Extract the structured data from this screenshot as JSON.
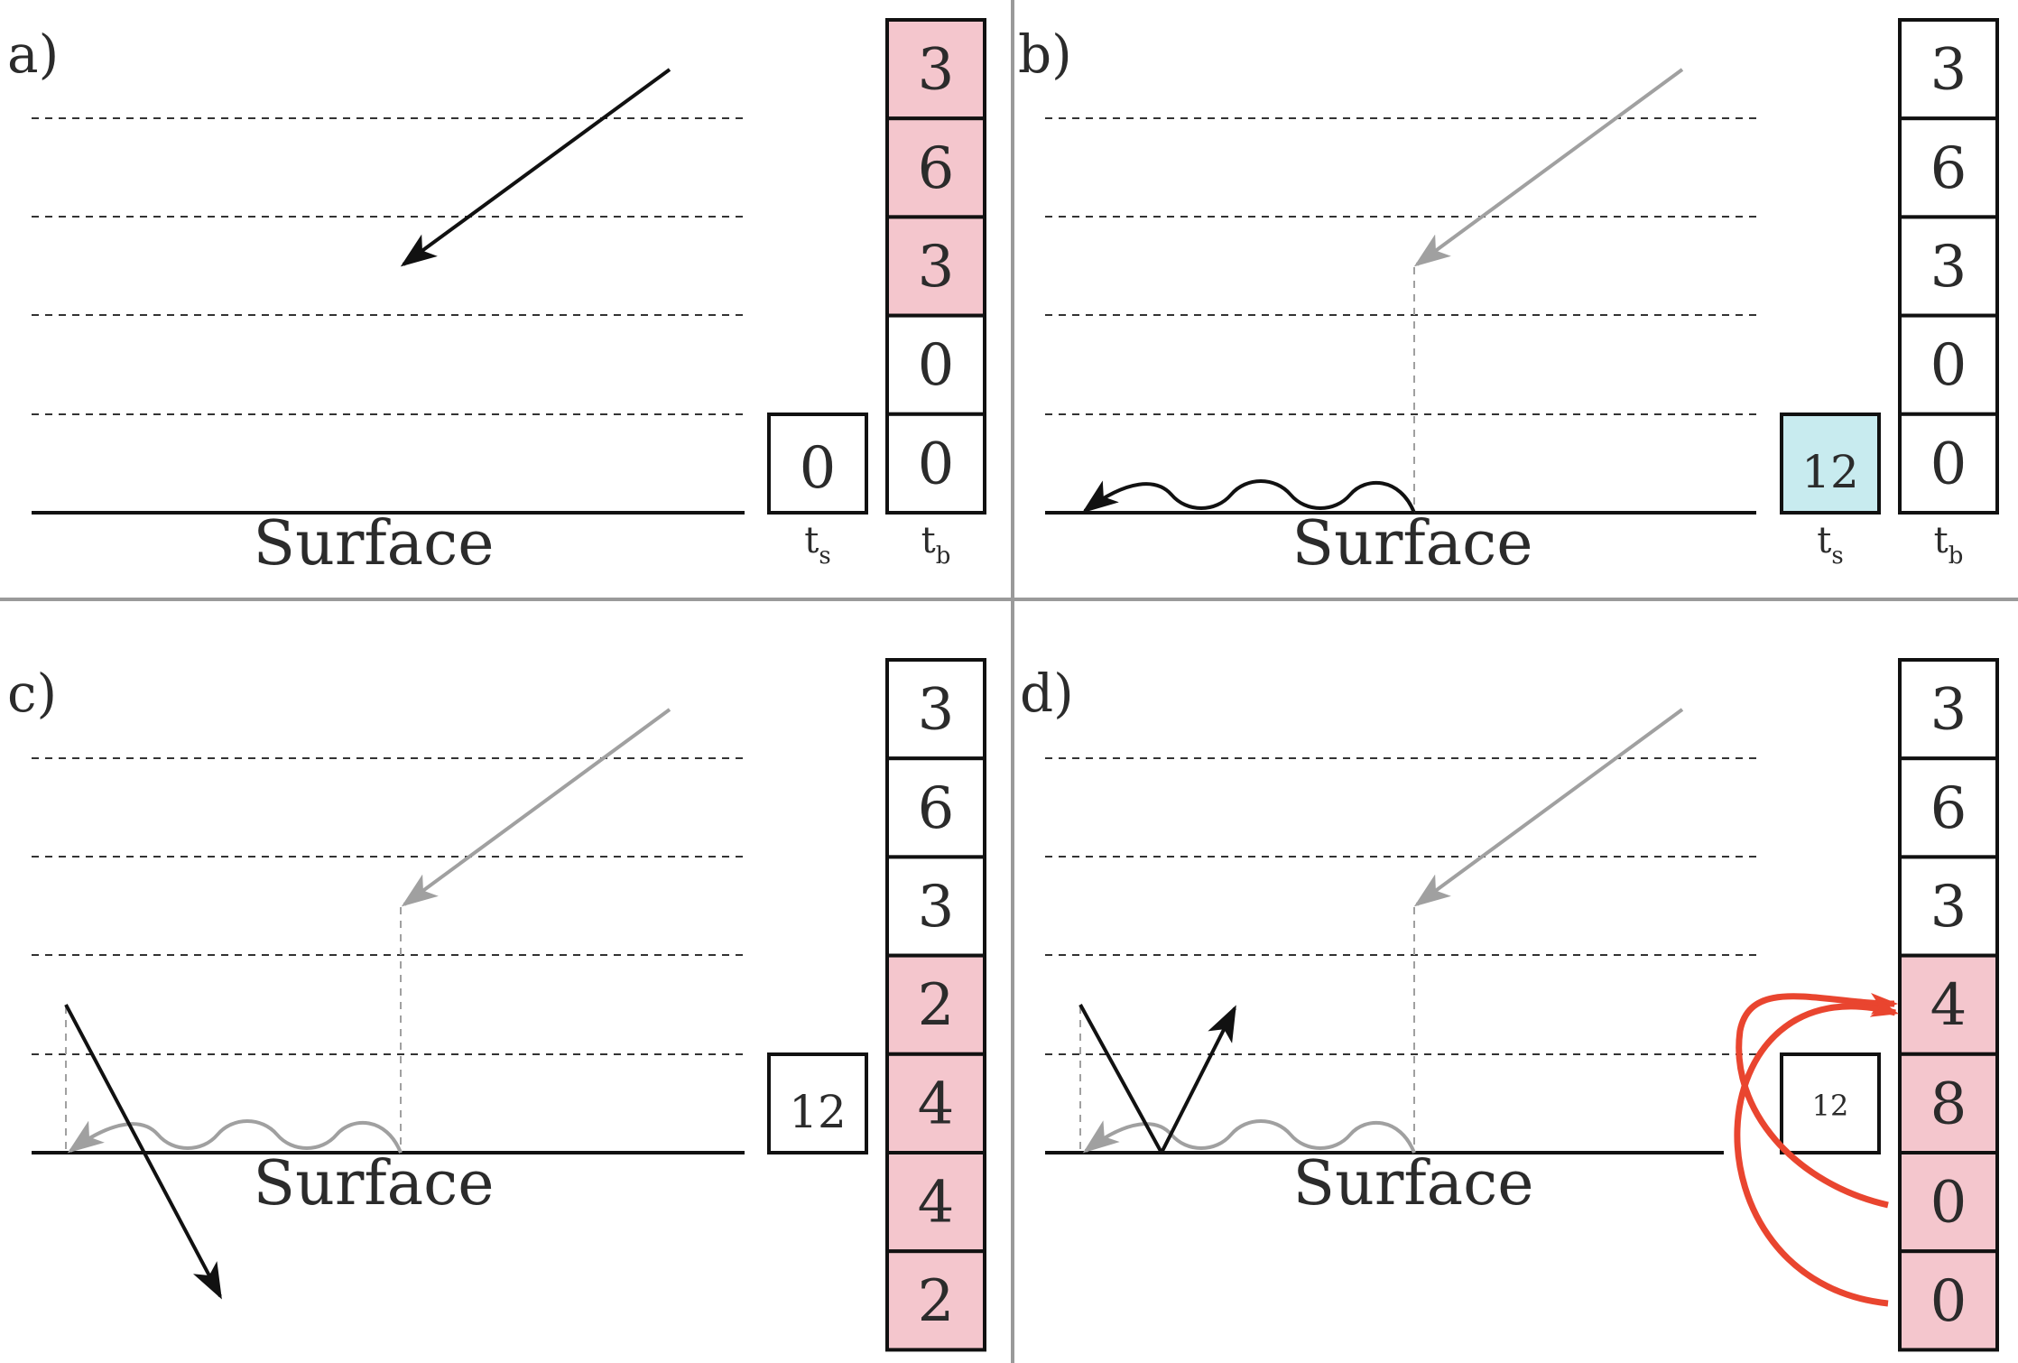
{
  "colors": {
    "ink": "#111111",
    "grey_arrow": "#a0a0a0",
    "grey_divider": "#9a9a9a",
    "dash": "#333333",
    "pink": "#f4c6cd",
    "cyan": "#c8ebef",
    "red": "#e9452f"
  },
  "icons": {
    "incoming": "incoming-ray-arrow-icon",
    "surface_wave": "surface-wave-arrow-icon",
    "transmitted": "transmitted-ray-arrow-icon",
    "reflected": "reflected-ray-arrow-icon",
    "redistribute": "redistribution-curved-arrow-icon"
  },
  "panels": [
    {
      "label": "a)",
      "surface_label": "Surface",
      "ts_value": "0",
      "ts_highlight": "none",
      "ts_label_main": "t",
      "ts_label_sub": "s",
      "tb_label_main": "t",
      "tb_label_sub": "b",
      "tb_values": [
        "3",
        "6",
        "3",
        "0",
        "0"
      ],
      "tb_highlight": [
        true,
        true,
        true,
        false,
        false
      ]
    },
    {
      "label": "b)",
      "surface_label": "Surface",
      "ts_value": "12",
      "ts_highlight": "cyan",
      "ts_label_main": "t",
      "ts_label_sub": "s",
      "tb_label_main": "t",
      "tb_label_sub": "b",
      "tb_values": [
        "3",
        "6",
        "3",
        "0",
        "0"
      ],
      "tb_highlight": [
        false,
        false,
        false,
        false,
        false
      ]
    },
    {
      "label": "c)",
      "surface_label": "Surface",
      "ts_value": "12",
      "ts_highlight": "none",
      "tb_values": [
        "3",
        "6",
        "3",
        "2",
        "4",
        "4",
        "2"
      ],
      "tb_highlight": [
        false,
        false,
        false,
        true,
        true,
        true,
        true
      ]
    },
    {
      "label": "d)",
      "surface_label": "Surface",
      "ts_value": "12",
      "ts_highlight": "none",
      "tb_values": [
        "3",
        "6",
        "3",
        "4",
        "8",
        "0",
        "0"
      ],
      "tb_highlight": [
        false,
        false,
        false,
        true,
        true,
        true,
        true
      ]
    }
  ]
}
